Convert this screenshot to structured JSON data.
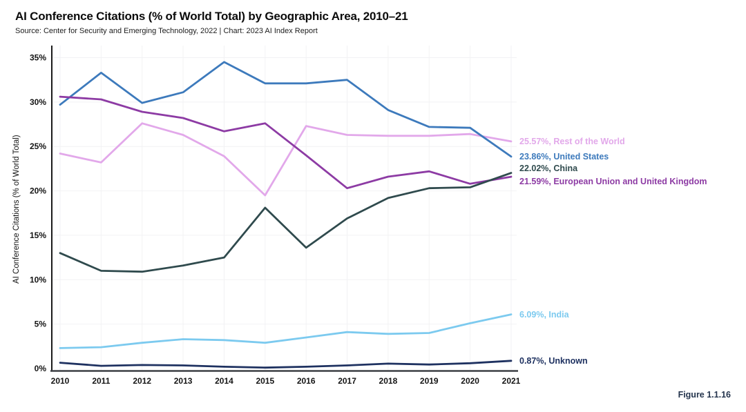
{
  "header": {
    "title": "AI Conference Citations (% of World Total) by Geographic Area, 2010–21",
    "subtitle": "Source: Center for Security and Emerging Technology, 2022 | Chart: 2023 AI Index Report"
  },
  "figure_label": "Figure 1.1.16",
  "chart_data": {
    "type": "line",
    "title": "AI Conference Citations (% of World Total) by Geographic Area, 2010–21",
    "xlabel": "",
    "ylabel": "AI Conference Citations (% of World Total)",
    "x": [
      2010,
      2011,
      2012,
      2013,
      2014,
      2015,
      2016,
      2017,
      2018,
      2019,
      2020,
      2021
    ],
    "ylim": [
      0,
      35
    ],
    "ytick_labels": [
      "0%",
      "5%",
      "10%",
      "15%",
      "20%",
      "25%",
      "30%",
      "35%"
    ],
    "grid": true,
    "legend_position": "right-end-labels",
    "series": [
      {
        "name": "Rest of the World",
        "color": "#e2a8ea",
        "end_label": "25.57%, Rest of the World",
        "values": [
          24.2,
          23.2,
          27.6,
          26.3,
          23.9,
          19.5,
          27.3,
          26.3,
          26.2,
          26.2,
          26.4,
          25.57
        ]
      },
      {
        "name": "United States",
        "color": "#3d7abc",
        "end_label": "23.86%, United States",
        "values": [
          29.7,
          33.3,
          29.9,
          31.1,
          34.5,
          32.1,
          32.1,
          32.5,
          29.1,
          27.2,
          27.1,
          23.86
        ]
      },
      {
        "name": "China",
        "color": "#2f4a4d",
        "end_label": "22.02%, China",
        "values": [
          13.0,
          11.0,
          10.9,
          11.6,
          12.5,
          18.1,
          13.6,
          16.9,
          19.2,
          20.3,
          20.4,
          22.02
        ]
      },
      {
        "name": "European Union and United Kingdom",
        "color": "#8d3ba4",
        "end_label": "21.59%, European Union and United Kingdom",
        "values": [
          30.6,
          30.3,
          28.9,
          28.2,
          26.7,
          27.6,
          24.0,
          20.3,
          21.6,
          22.2,
          20.8,
          21.59
        ]
      },
      {
        "name": "India",
        "color": "#7ccaef",
        "end_label": "6.09%, India",
        "values": [
          2.3,
          2.4,
          2.9,
          3.3,
          3.2,
          2.9,
          3.5,
          4.1,
          3.9,
          4.0,
          5.1,
          6.09
        ]
      },
      {
        "name": "Unknown",
        "color": "#1e3160",
        "end_label": "0.87%, Unknown",
        "values": [
          0.65,
          0.3,
          0.4,
          0.35,
          0.2,
          0.1,
          0.2,
          0.35,
          0.55,
          0.45,
          0.6,
          0.87
        ]
      }
    ]
  }
}
